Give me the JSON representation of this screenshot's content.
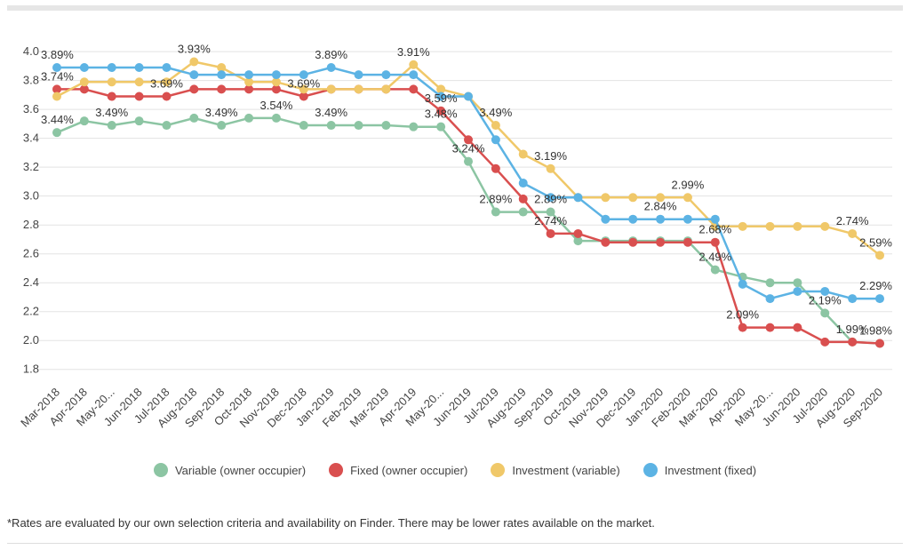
{
  "chart_data": {
    "type": "line",
    "title": "",
    "xlabel": "",
    "ylabel": "",
    "ylim": [
      1.7,
      4.05
    ],
    "y_ticks": [
      "4.0",
      "3.8",
      "3.6",
      "3.4",
      "3.2",
      "3.0",
      "2.8",
      "2.6",
      "2.4",
      "2.2",
      "2.0",
      "1.8"
    ],
    "y_tick_values": [
      4.0,
      3.8,
      3.6,
      3.4,
      3.2,
      3.0,
      2.8,
      2.6,
      2.4,
      2.2,
      2.0,
      1.8
    ],
    "grid": true,
    "legend_position": "bottom",
    "categories": [
      "Mar-2018",
      "Apr-2018",
      "May-20...",
      "Jun-2018",
      "Jul-2018",
      "Aug-2018",
      "Sep-2018",
      "Oct-2018",
      "Nov-2018",
      "Dec-2018",
      "Jan-2019",
      "Feb-2019",
      "Mar-2019",
      "Apr-2019",
      "May-20...",
      "Jun-2019",
      "Jul-2019",
      "Aug-2019",
      "Sep-2019",
      "Oct-2019",
      "Nov-2019",
      "Dec-2019",
      "Jan-2020",
      "Feb-2020",
      "Mar-2020",
      "Apr-2020",
      "May-20...",
      "Jun-2020",
      "Jul-2020",
      "Aug-2020",
      "Sep-2020"
    ],
    "series": [
      {
        "name": "Variable (owner occupier)",
        "color": "#8cc5a3",
        "values": [
          3.44,
          3.52,
          3.49,
          3.52,
          3.49,
          3.54,
          3.49,
          3.54,
          3.54,
          3.49,
          3.49,
          3.49,
          3.49,
          3.48,
          3.48,
          3.24,
          2.89,
          2.89,
          2.89,
          2.69,
          2.69,
          2.69,
          2.69,
          2.69,
          2.49,
          2.44,
          2.4,
          2.4,
          2.19,
          1.99,
          1.98
        ],
        "labels": [
          {
            "i": 0,
            "text": "3.44%"
          },
          {
            "i": 2,
            "text": "3.49%"
          },
          {
            "i": 6,
            "text": "3.49%"
          },
          {
            "i": 8,
            "text": "3.54%"
          },
          {
            "i": 10,
            "text": "3.49%"
          },
          {
            "i": 14,
            "text": "3.48%"
          },
          {
            "i": 15,
            "text": "3.24%"
          },
          {
            "i": 16,
            "text": "2.89%"
          },
          {
            "i": 18,
            "text": "2.89%"
          },
          {
            "i": 24,
            "text": "2.49%"
          },
          {
            "i": 28,
            "text": "2.19%"
          },
          {
            "i": 29,
            "text": "1.99%"
          }
        ]
      },
      {
        "name": "Fixed (owner occupier)",
        "color": "#d94f4f",
        "values": [
          3.74,
          3.74,
          3.69,
          3.69,
          3.69,
          3.74,
          3.74,
          3.74,
          3.74,
          3.69,
          3.74,
          3.74,
          3.74,
          3.74,
          3.59,
          3.39,
          3.19,
          2.98,
          2.74,
          2.74,
          2.68,
          2.68,
          2.68,
          2.68,
          2.68,
          2.09,
          2.09,
          2.09,
          1.99,
          1.99,
          1.98
        ],
        "labels": [
          {
            "i": 0,
            "text": "3.74%"
          },
          {
            "i": 4,
            "text": "3.69%"
          },
          {
            "i": 9,
            "text": "3.69%"
          },
          {
            "i": 14,
            "text": "3.59%"
          },
          {
            "i": 18,
            "text": "2.74%"
          },
          {
            "i": 24,
            "text": "2.68%"
          },
          {
            "i": 25,
            "text": "2.09%"
          },
          {
            "i": 30,
            "text": "1.98%"
          }
        ]
      },
      {
        "name": "Investment (variable)",
        "color": "#f0c869",
        "values": [
          3.69,
          3.79,
          3.79,
          3.79,
          3.79,
          3.93,
          3.89,
          3.79,
          3.79,
          3.74,
          3.74,
          3.74,
          3.74,
          3.91,
          3.74,
          3.69,
          3.49,
          3.29,
          3.19,
          2.99,
          2.99,
          2.99,
          2.99,
          2.99,
          2.79,
          2.79,
          2.79,
          2.79,
          2.79,
          2.74,
          2.59
        ],
        "labels": [
          {
            "i": 5,
            "text": "3.93%"
          },
          {
            "i": 13,
            "text": "3.91%"
          },
          {
            "i": 16,
            "text": "3.49%"
          },
          {
            "i": 18,
            "text": "3.19%"
          },
          {
            "i": 23,
            "text": "2.99%"
          },
          {
            "i": 29,
            "text": "2.74%"
          },
          {
            "i": 30,
            "text": "2.59%"
          }
        ]
      },
      {
        "name": "Investment (fixed)",
        "color": "#5cb3e4",
        "values": [
          3.89,
          3.89,
          3.89,
          3.89,
          3.89,
          3.84,
          3.84,
          3.84,
          3.84,
          3.84,
          3.89,
          3.84,
          3.84,
          3.84,
          3.69,
          3.69,
          3.39,
          3.09,
          2.99,
          2.99,
          2.84,
          2.84,
          2.84,
          2.84,
          2.84,
          2.39,
          2.29,
          2.34,
          2.34,
          2.29,
          2.29
        ],
        "labels": [
          {
            "i": 0,
            "text": "3.89%"
          },
          {
            "i": 10,
            "text": "3.89%"
          },
          {
            "i": 22,
            "text": "2.84%"
          },
          {
            "i": 30,
            "text": "2.29%"
          }
        ]
      }
    ]
  },
  "footnote": "*Rates are evaluated by our own selection criteria and availability on Finder. There may be lower rates available on the market."
}
